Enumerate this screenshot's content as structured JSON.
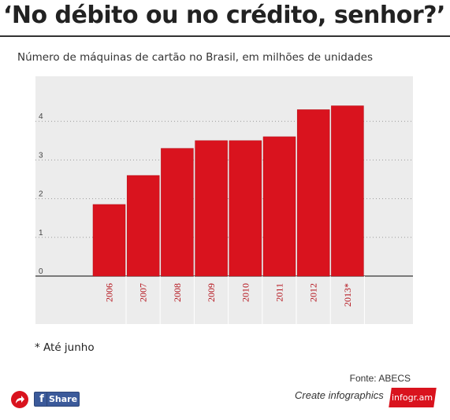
{
  "header": {
    "title": "‘No débito ou no crédito, senhor?’",
    "subtitle": "Número de máquinas de cartão no Brasil, em milhões de unidades"
  },
  "colors": {
    "bar": "#d9131e",
    "bar_edge": "#b30e17",
    "chart_background": "#ececec",
    "tick_label": "#b30e17"
  },
  "chart_data": {
    "type": "bar",
    "title": "Número de máquinas de cartão no Brasil, em milhões de unidades",
    "xlabel": "",
    "ylabel": "",
    "categories": [
      "2006",
      "2007",
      "2008",
      "2009",
      "2010",
      "2011",
      "2012",
      "2013*"
    ],
    "values": [
      1.85,
      2.6,
      3.3,
      3.5,
      3.5,
      3.6,
      4.3,
      4.4
    ],
    "ylim": [
      0,
      4.8
    ],
    "yticks": [
      "0",
      "1",
      "2",
      "3",
      "4"
    ],
    "grid": true,
    "legend": "none",
    "footnote": "* Até junho",
    "source": "Fonte: ABECS"
  },
  "footer": {
    "share_label": "Share",
    "fb_icon": "f",
    "create_link": "Create infographics",
    "brand_badge": "infogr.am",
    "share_arrow_icon": "share-arrow-icon"
  }
}
